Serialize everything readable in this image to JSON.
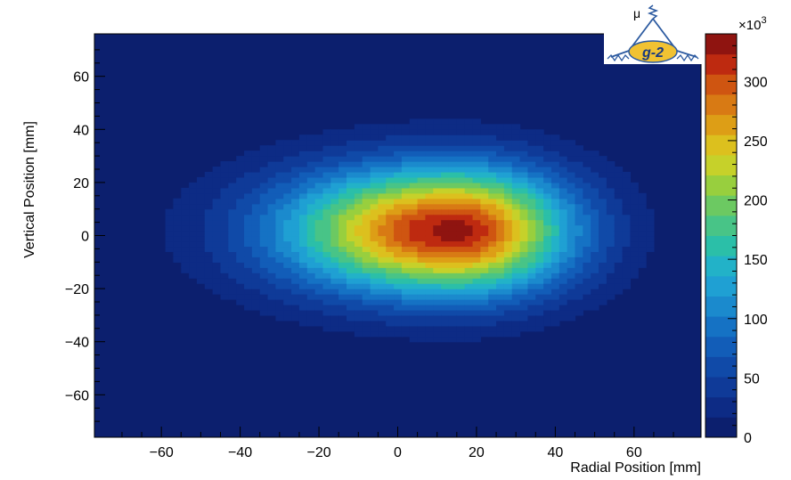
{
  "chart_data": {
    "type": "heatmap",
    "title": "",
    "xlabel": "Radial Position [mm]",
    "ylabel": "Vertical Position [mm]",
    "xlim": [
      -77,
      77
    ],
    "ylim": [
      -76,
      76
    ],
    "xticks": [
      -60,
      -40,
      -20,
      0,
      20,
      40,
      60
    ],
    "yticks": [
      -60,
      -40,
      -20,
      0,
      20,
      40,
      60
    ],
    "colorbar": {
      "min": 0,
      "max": 340,
      "multiplier_label": "×10",
      "multiplier_exponent": "3",
      "ticks": [
        0,
        50,
        100,
        150,
        200,
        250,
        300
      ],
      "levels": 20
    },
    "distribution": {
      "peak_value": 330,
      "peak_x": 14,
      "peak_y": 2,
      "sigma_x_left": 30,
      "sigma_x_right": 21,
      "sigma_y": 17,
      "floor_value": 0
    },
    "grid": false,
    "legend": "none"
  },
  "logo": {
    "symbol": "μ",
    "text": "g-2"
  },
  "colors": {
    "palette": [
      "#0c1f6e",
      "#0d2b85",
      "#0f3a98",
      "#104aa8",
      "#125db8",
      "#1572c4",
      "#1b8acd",
      "#1fa0d3",
      "#22b2c8",
      "#2bbfa8",
      "#48c487",
      "#6cc962",
      "#98cf3e",
      "#c6d12a",
      "#dcc01e",
      "#dd9e16",
      "#d87a14",
      "#cf5511",
      "#be2a10",
      "#8f1410"
    ],
    "logo_ellipse": "#f1c232",
    "logo_frame": "#2c5aa0"
  }
}
